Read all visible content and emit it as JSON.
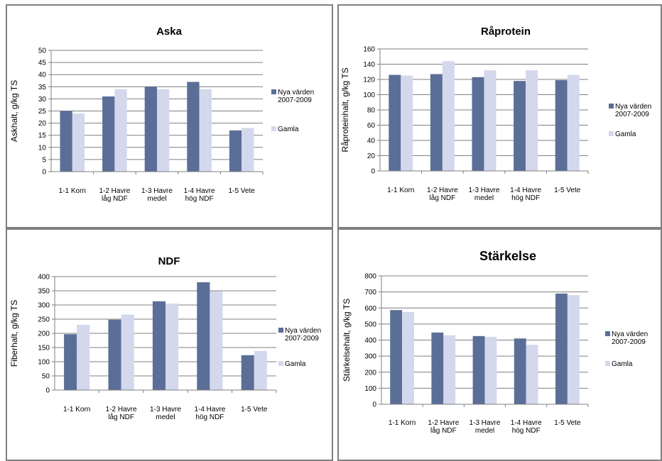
{
  "colors": {
    "series1": "#5b6e98",
    "series2": "#d4d8ec",
    "grid": "#7f7f7f"
  },
  "chart_data": [
    {
      "type": "bar",
      "title": "Aska",
      "ylabel": "Askhalt, g/kg TS",
      "ylim": [
        0,
        50
      ],
      "ystep": 5,
      "categories": [
        [
          "1-1 Korn"
        ],
        [
          "1-2 Havre",
          "låg NDF"
        ],
        [
          "1-3 Havre",
          "medel"
        ],
        [
          "1-4 Havre",
          "hög NDF"
        ],
        [
          "1-5 Vete"
        ]
      ],
      "series": [
        {
          "name": [
            "Nya värden",
            "2007-2009"
          ],
          "values": [
            25,
            31,
            35,
            37,
            17
          ]
        },
        {
          "name": [
            "Gamla"
          ],
          "values": [
            24,
            34,
            34,
            34,
            18
          ]
        }
      ],
      "legend": "right",
      "grid": true
    },
    {
      "type": "bar",
      "title": "Råprotein",
      "ylabel": "Råproteinhalt, g/kg TS",
      "ylim": [
        0,
        160
      ],
      "ystep": 20,
      "categories": [
        [
          "1-1 Korn"
        ],
        [
          "1-2 Havre",
          "låg NDF"
        ],
        [
          "1-3 Havre",
          "medel"
        ],
        [
          "1-4 Havre",
          "hög NDF"
        ],
        [
          "1-5 Vete"
        ]
      ],
      "series": [
        {
          "name": [
            "Nya värden",
            "2007-2009"
          ],
          "values": [
            126,
            127,
            123,
            118,
            119
          ]
        },
        {
          "name": [
            "Gamla"
          ],
          "values": [
            125,
            144,
            132,
            132,
            126
          ]
        }
      ],
      "legend": "right",
      "grid": true
    },
    {
      "type": "bar",
      "title": "NDF",
      "ylabel": "Fiberhalt, g/kg TS",
      "ylim": [
        0,
        400
      ],
      "ystep": 50,
      "categories": [
        [
          "1-1 Korn"
        ],
        [
          "1-2 Havre",
          "låg NDF"
        ],
        [
          "1-3 Havre",
          "medel"
        ],
        [
          "1-4 Havre",
          "hög NDF"
        ],
        [
          "1-5 Vete"
        ]
      ],
      "series": [
        {
          "name": [
            "Nya värden",
            "2007-2009"
          ],
          "values": [
            197,
            248,
            313,
            380,
            123
          ]
        },
        {
          "name": [
            "Gamla"
          ],
          "values": [
            230,
            266,
            305,
            348,
            138
          ]
        }
      ],
      "legend": "right",
      "grid": true
    },
    {
      "type": "bar",
      "title": "Stärkelse",
      "ylabel": "Stärkelsehalt, g/kg TS",
      "ylim": [
        0,
        800
      ],
      "ystep": 100,
      "categories": [
        [
          "1-1 Korn"
        ],
        [
          "1-2 Havre",
          "låg NDF"
        ],
        [
          "1-3 Havre",
          "medel"
        ],
        [
          "1-4 Havre",
          "hög NDF"
        ],
        [
          "1-5 Vete"
        ]
      ],
      "series": [
        {
          "name": [
            "Nya värden",
            "2007-2009"
          ],
          "values": [
            587,
            447,
            425,
            410,
            690
          ]
        },
        {
          "name": [
            "Gamla"
          ],
          "values": [
            575,
            430,
            420,
            370,
            680
          ]
        }
      ],
      "legend": "right",
      "grid": true
    }
  ]
}
